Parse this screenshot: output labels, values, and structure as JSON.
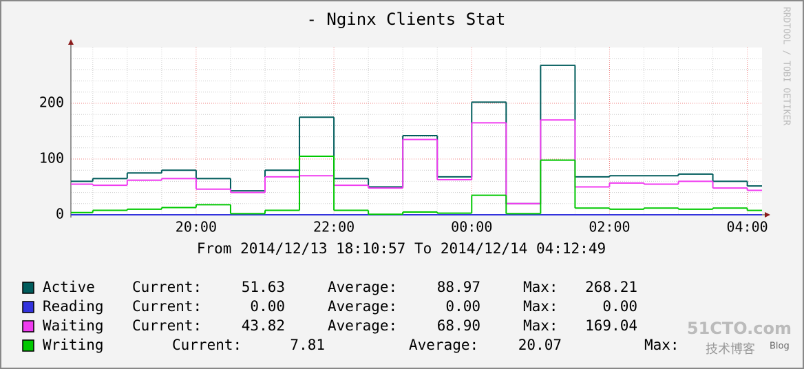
{
  "chart_data": {
    "type": "step",
    "title": "- Nginx Clients Stat",
    "subtitle": "From 2014/12/13 18:10:57 To 2014/12/14 04:12:49",
    "side_text": "RRDTOOL / TOBI OETIKER",
    "watermark": [
      "51CTO.com",
      "技术博客",
      "Blog"
    ],
    "x": [
      18.1825,
      18.5,
      19,
      19.5,
      20,
      20.5,
      21,
      21.5,
      22,
      22.5,
      23,
      23.5,
      24,
      24.5,
      25,
      25.5,
      26,
      26.5,
      27,
      27.5,
      28
    ],
    "xlim": [
      18.1825,
      28.2136
    ],
    "xticks": [
      {
        "value": 20,
        "label": "20:00"
      },
      {
        "value": 22,
        "label": "22:00"
      },
      {
        "value": 24,
        "label": "00:00"
      },
      {
        "value": 26,
        "label": "02:00"
      },
      {
        "value": 28,
        "label": "04:00"
      }
    ],
    "minor_xticks": [
      18.5,
      19,
      19.5,
      20.5,
      21,
      21.5,
      22.5,
      23,
      23.5,
      24.5,
      25,
      25.5,
      26.5,
      27,
      27.5
    ],
    "ylim": [
      0,
      300
    ],
    "yticks": [
      0,
      100,
      200
    ],
    "minor_yticks": [
      20,
      40,
      60,
      80,
      120,
      140,
      160,
      180,
      220,
      240,
      260,
      280
    ],
    "grid": true,
    "stat_labels": [
      "Current:",
      "Average:",
      "Max:"
    ],
    "series": [
      {
        "name": "Active",
        "color": "#005c5c",
        "values": [
          60,
          65,
          75,
          80,
          65,
          43,
          80,
          175,
          65,
          50,
          142,
          68,
          202,
          20,
          268,
          68,
          70,
          70,
          73,
          60,
          51.63
        ],
        "current": "51.63",
        "average": "88.97",
        "max": "268.21"
      },
      {
        "name": "Reading",
        "color": "#3333dd",
        "values": [
          0,
          0,
          0,
          0,
          0,
          0,
          0,
          0,
          0,
          0,
          0,
          0,
          0,
          0,
          0,
          0,
          0,
          0,
          0,
          0,
          0
        ],
        "current": "0.00",
        "average": "0.00",
        "max": "0.00"
      },
      {
        "name": "Waiting",
        "color": "#f03cf0",
        "values": [
          55,
          53,
          62,
          65,
          46,
          40,
          68,
          70,
          53,
          48,
          135,
          63,
          165,
          20,
          170,
          50,
          57,
          55,
          60,
          48,
          43.82
        ],
        "current": "43.82",
        "average": "68.90",
        "max": "169.04"
      },
      {
        "name": "Writing",
        "color": "#00c800",
        "values": [
          4,
          8,
          10,
          13,
          18,
          2,
          8,
          105,
          8,
          1,
          5,
          3,
          35,
          2,
          98,
          12,
          10,
          12,
          10,
          12,
          7.81
        ],
        "current": "7.81",
        "average": "20.07"
      }
    ]
  }
}
